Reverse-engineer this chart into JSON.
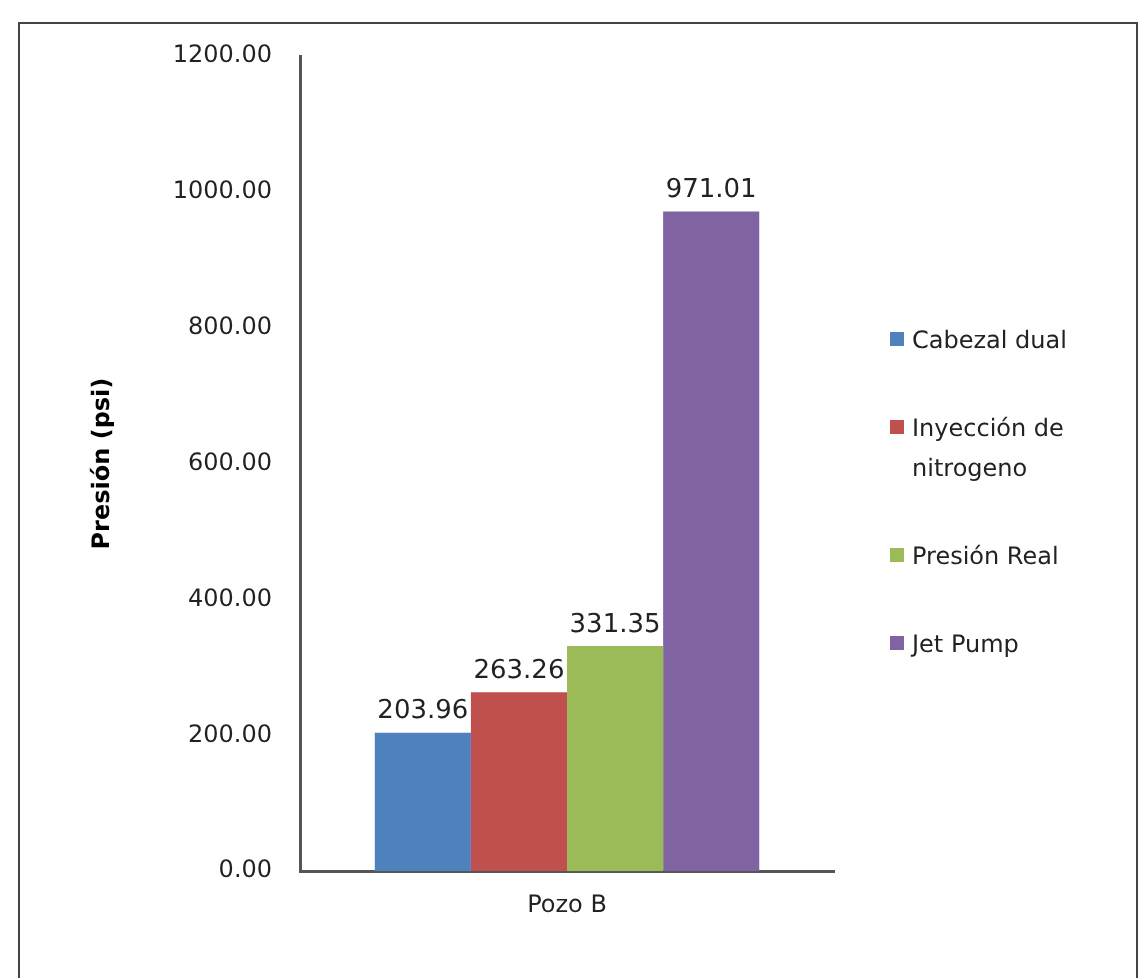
{
  "chart_data": {
    "type": "bar",
    "categories": [
      "Pozo B"
    ],
    "ylabel": "Presión (psi)",
    "ylim": [
      0,
      1200
    ],
    "yticks": [
      {
        "value": 0,
        "label": "0.00"
      },
      {
        "value": 200,
        "label": "200.00"
      },
      {
        "value": 400,
        "label": "400.00"
      },
      {
        "value": 600,
        "label": "600.00"
      },
      {
        "value": 800,
        "label": "800.00"
      },
      {
        "value": 1000,
        "label": "1000.00"
      },
      {
        "value": 1200,
        "label": "1200.00"
      }
    ],
    "grid": false,
    "legend": "right",
    "data_labels": true,
    "series": [
      {
        "name": "Cabezal dual",
        "color": "#4f81bd",
        "values": [
          203.96
        ]
      },
      {
        "name": "Inyección de nitrogeno",
        "color": "#c0504d",
        "values": [
          263.26
        ]
      },
      {
        "name": "Presión Real",
        "color": "#9bbb59",
        "values": [
          331.35
        ]
      },
      {
        "name": "Jet Pump",
        "color": "#8064a2",
        "values": [
          971.01
        ]
      }
    ]
  }
}
